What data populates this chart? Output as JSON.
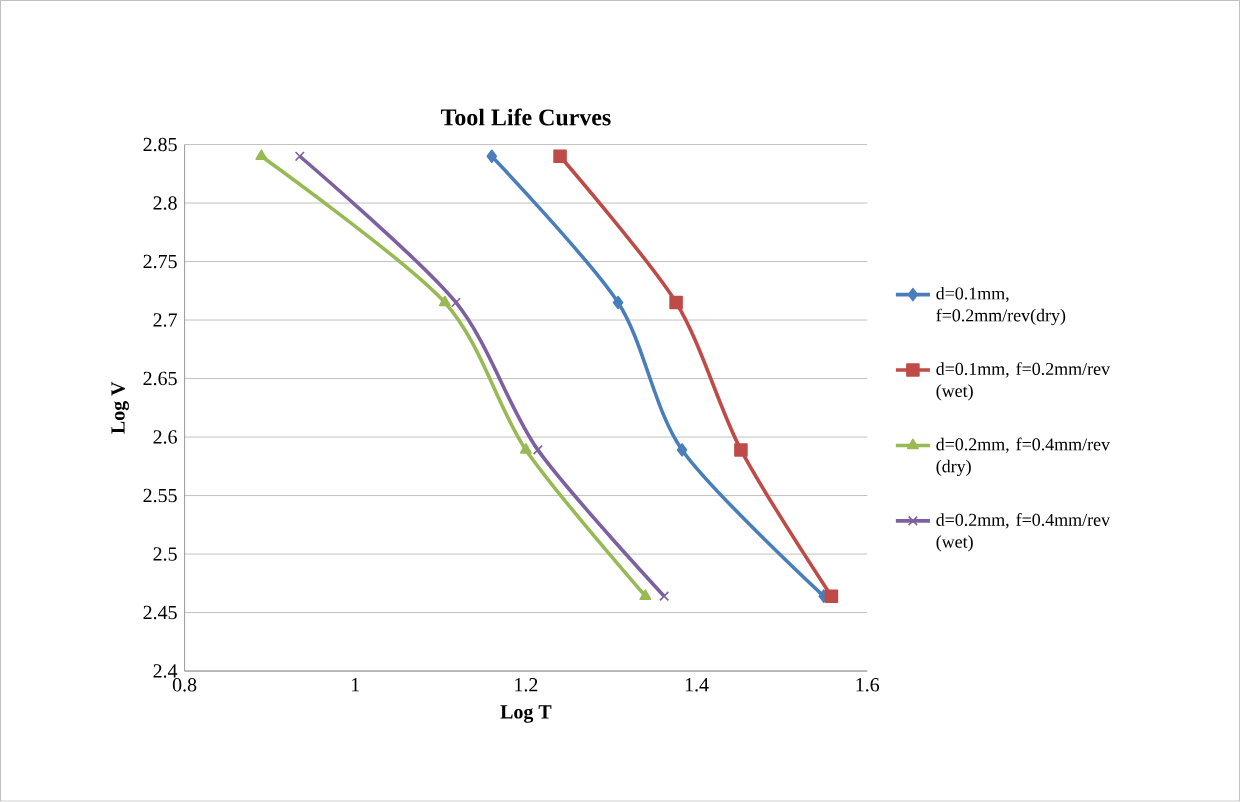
{
  "chart_data": {
    "type": "line",
    "title": "Tool Life Curves",
    "xlabel": "Log T",
    "ylabel": "Log V",
    "xlim": [
      0.8,
      1.6
    ],
    "xticks": [
      0.8,
      1,
      1.2,
      1.4,
      1.6
    ],
    "ylim": [
      2.4,
      2.85
    ],
    "yticks": [
      2.4,
      2.45,
      2.5,
      2.55,
      2.6,
      2.65,
      2.7,
      2.75,
      2.8,
      2.85
    ],
    "grid": "y",
    "legend": "right",
    "series": [
      {
        "name": "d=0.1mm, f=0.2mm/rev(dry)",
        "color": "#4a7ebb",
        "marker": "diamond",
        "x": [
          1.16,
          1.308,
          1.383,
          1.549
        ],
        "values": [
          2.84,
          2.715,
          2.589,
          2.464
        ]
      },
      {
        "name": "d=0.1mm, f=0.2mm/rev (wet)",
        "color": "#be4b48",
        "marker": "square",
        "x": [
          1.24,
          1.376,
          1.452,
          1.558
        ],
        "values": [
          2.84,
          2.715,
          2.589,
          2.464
        ]
      },
      {
        "name": "d=0.2mm, f=0.4mm/rev (dry)",
        "color": "#98b954",
        "marker": "triangle",
        "x": [
          0.89,
          1.105,
          1.2,
          1.34
        ],
        "values": [
          2.84,
          2.715,
          2.589,
          2.464
        ]
      },
      {
        "name": "d=0.2mm, f=0.4mm/rev (wet)",
        "color": "#7d60a0",
        "marker": "cross",
        "x": [
          0.935,
          1.118,
          1.214,
          1.362
        ],
        "values": [
          2.84,
          2.715,
          2.589,
          2.464
        ]
      }
    ]
  }
}
